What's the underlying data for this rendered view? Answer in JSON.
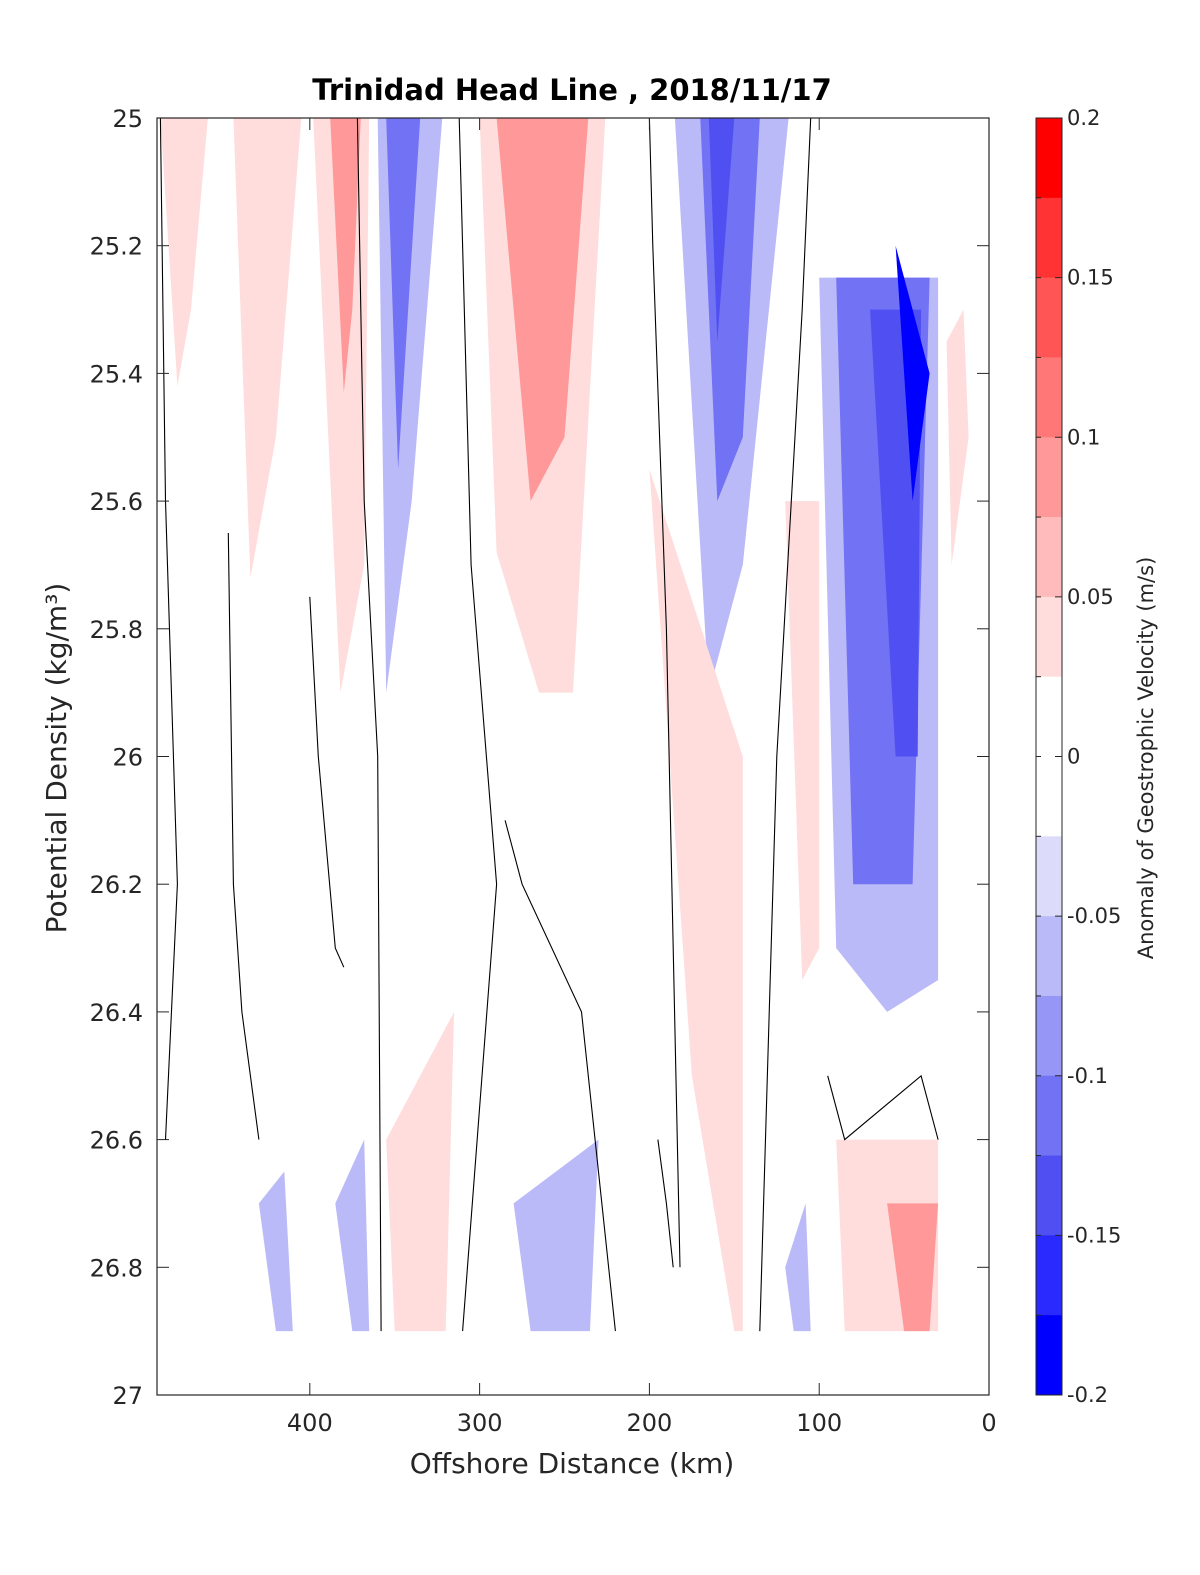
{
  "chart_data": {
    "type": "contour",
    "title": "Trinidad Head Line , 2018/11/17",
    "xlabel": "Offshore Distance (km)",
    "ylabel": "Potential Density (kg/m³)",
    "xlim": [
      490,
      0
    ],
    "ylim": [
      25,
      27
    ],
    "x_reversed": true,
    "y_reversed": true,
    "x_ticks": [
      400,
      300,
      200,
      100,
      0
    ],
    "y_ticks": [
      25,
      25.2,
      25.4,
      25.6,
      25.8,
      26,
      26.2,
      26.4,
      26.6,
      26.8,
      27
    ],
    "y_tick_labels": [
      "25",
      "25.2",
      "25.4",
      "25.6",
      "25.8",
      "26",
      "26.2",
      "26.4",
      "26.6",
      "26.8",
      "27"
    ],
    "colorbar": {
      "label": "Anomaly of Geostrophic Velocity (m/s)",
      "range": [
        -0.2,
        0.2
      ],
      "ticks": [
        0.2,
        0.15,
        0.1,
        0.05,
        0,
        -0.05,
        -0.1,
        -0.15,
        -0.2
      ],
      "tick_labels": [
        "0.2",
        "0.15",
        "0.1",
        "0.05",
        "0",
        "-0.05",
        "-0.1",
        "-0.15",
        "-0.2"
      ],
      "level_colors": [
        "#ff0000",
        "#ff3333",
        "#ff5555",
        "#ff7777",
        "#ff9999",
        "#ffbbbb",
        "#ffdddd",
        "#ffffff",
        "#ffffff",
        "#dcdcfa",
        "#babaf8",
        "#9696f6",
        "#7272f4",
        "#5050f2",
        "#2a2aff",
        "#0000ff"
      ]
    },
    "fill_regions": [
      {
        "level": 0.05,
        "polygon": [
          [
            460,
            25
          ],
          [
            488,
            25
          ],
          [
            478,
            25.42
          ],
          [
            470,
            25.3
          ]
        ]
      },
      {
        "level": 0.05,
        "polygon": [
          [
            405,
            25
          ],
          [
            445,
            25
          ],
          [
            435,
            25.72
          ],
          [
            420,
            25.5
          ]
        ]
      },
      {
        "level": 0.05,
        "polygon": [
          [
            365,
            25
          ],
          [
            398,
            25
          ],
          [
            382,
            25.9
          ],
          [
            368,
            25.7
          ]
        ]
      },
      {
        "level": 0.1,
        "polygon": [
          [
            370,
            25
          ],
          [
            388,
            25
          ],
          [
            380,
            25.43
          ],
          [
            375,
            25.3
          ]
        ]
      },
      {
        "level": -0.05,
        "polygon": [
          [
            322,
            25
          ],
          [
            360,
            25
          ],
          [
            355,
            25.9
          ],
          [
            340,
            25.6
          ]
        ]
      },
      {
        "level": -0.1,
        "polygon": [
          [
            335,
            25
          ],
          [
            355,
            25
          ],
          [
            348,
            25.55
          ]
        ]
      },
      {
        "level": 0.05,
        "polygon": [
          [
            226,
            25
          ],
          [
            300,
            25
          ],
          [
            290,
            25.68
          ],
          [
            265,
            25.9
          ],
          [
            245,
            25.9
          ]
        ]
      },
      {
        "level": 0.1,
        "polygon": [
          [
            236,
            25
          ],
          [
            290,
            25
          ],
          [
            270,
            25.6
          ],
          [
            250,
            25.5
          ]
        ]
      },
      {
        "level": -0.05,
        "polygon": [
          [
            118,
            25
          ],
          [
            185,
            25
          ],
          [
            165,
            25.9
          ],
          [
            145,
            25.7
          ]
        ]
      },
      {
        "level": -0.1,
        "polygon": [
          [
            135,
            25
          ],
          [
            170,
            25
          ],
          [
            160,
            25.6
          ],
          [
            145,
            25.5
          ]
        ]
      },
      {
        "level": -0.15,
        "polygon": [
          [
            150,
            25
          ],
          [
            165,
            25
          ],
          [
            160,
            25.35
          ]
        ]
      },
      {
        "level": 0.05,
        "polygon": [
          [
            100,
            25.6
          ],
          [
            120,
            25.6
          ],
          [
            110,
            26.35
          ],
          [
            100,
            26.3
          ]
        ]
      },
      {
        "level": 0.05,
        "polygon": [
          [
            145,
            26
          ],
          [
            200,
            25.55
          ],
          [
            175,
            26.5
          ],
          [
            150,
            26.9
          ],
          [
            145,
            26.9
          ]
        ]
      },
      {
        "level": -0.05,
        "polygon": [
          [
            30,
            25.25
          ],
          [
            100,
            25.25
          ],
          [
            90,
            26.3
          ],
          [
            60,
            26.4
          ],
          [
            30,
            26.35
          ]
        ]
      },
      {
        "level": -0.1,
        "polygon": [
          [
            35,
            25.25
          ],
          [
            90,
            25.25
          ],
          [
            80,
            26.2
          ],
          [
            45,
            26.2
          ]
        ]
      },
      {
        "level": -0.15,
        "polygon": [
          [
            40,
            25.3
          ],
          [
            70,
            25.3
          ],
          [
            55,
            26
          ],
          [
            42,
            26
          ]
        ]
      },
      {
        "level": -0.2,
        "polygon": [
          [
            35,
            25.4
          ],
          [
            55,
            25.2
          ],
          [
            45,
            25.6
          ]
        ]
      },
      {
        "level": 0.05,
        "polygon": [
          [
            15,
            25.3
          ],
          [
            25,
            25.35
          ],
          [
            22,
            25.7
          ],
          [
            12,
            25.5
          ]
        ]
      },
      {
        "level": 0.05,
        "polygon": [
          [
            30,
            26.6
          ],
          [
            90,
            26.6
          ],
          [
            85,
            26.9
          ],
          [
            30,
            26.9
          ]
        ]
      },
      {
        "level": 0.1,
        "polygon": [
          [
            30,
            26.7
          ],
          [
            60,
            26.7
          ],
          [
            50,
            26.9
          ],
          [
            35,
            26.9
          ]
        ]
      },
      {
        "level": 0.05,
        "polygon": [
          [
            315,
            26.4
          ],
          [
            355,
            26.6
          ],
          [
            350,
            26.9
          ],
          [
            320,
            26.9
          ]
        ]
      },
      {
        "level": -0.05,
        "polygon": [
          [
            415,
            26.65
          ],
          [
            430,
            26.7
          ],
          [
            420,
            26.9
          ],
          [
            410,
            26.9
          ]
        ]
      },
      {
        "level": -0.05,
        "polygon": [
          [
            368,
            26.6
          ],
          [
            385,
            26.7
          ],
          [
            375,
            26.9
          ],
          [
            365,
            26.9
          ]
        ]
      },
      {
        "level": -0.05,
        "polygon": [
          [
            230,
            26.6
          ],
          [
            280,
            26.7
          ],
          [
            270,
            26.9
          ],
          [
            235,
            26.9
          ]
        ]
      },
      {
        "level": -0.05,
        "polygon": [
          [
            108,
            26.7
          ],
          [
            120,
            26.8
          ],
          [
            115,
            26.9
          ],
          [
            105,
            26.9
          ]
        ]
      }
    ],
    "zero_contours": [
      [
        [
          488,
          25
        ],
        [
          485,
          25.6
        ],
        [
          478,
          26.2
        ],
        [
          485,
          26.6
        ]
      ],
      [
        [
          448,
          25.65
        ],
        [
          445,
          26.2
        ],
        [
          440,
          26.4
        ],
        [
          430,
          26.6
        ]
      ],
      [
        [
          400,
          25.75
        ],
        [
          395,
          26
        ],
        [
          385,
          26.3
        ],
        [
          380,
          26.33
        ]
      ],
      [
        [
          372,
          25
        ],
        [
          368,
          25.6
        ],
        [
          360,
          26
        ],
        [
          358,
          26.9
        ]
      ],
      [
        [
          312,
          25
        ],
        [
          305,
          25.7
        ],
        [
          290,
          26.2
        ],
        [
          310,
          26.9
        ]
      ],
      [
        [
          285,
          26.1
        ],
        [
          275,
          26.2
        ],
        [
          240,
          26.4
        ],
        [
          220,
          26.9
        ]
      ],
      [
        [
          200,
          25
        ],
        [
          198,
          25.2
        ],
        [
          190,
          25.8
        ],
        [
          182,
          26.8
        ]
      ],
      [
        [
          195,
          26.6
        ],
        [
          190,
          26.7
        ],
        [
          186,
          26.8
        ]
      ],
      [
        [
          105,
          25
        ],
        [
          110,
          25.3
        ],
        [
          125,
          26
        ],
        [
          135,
          26.9
        ]
      ],
      [
        [
          95,
          26.5
        ],
        [
          85,
          26.6
        ],
        [
          40,
          26.5
        ],
        [
          30,
          26.6
        ]
      ]
    ]
  },
  "figure": {
    "background": "#ffffff",
    "axes_color": "#262626"
  }
}
